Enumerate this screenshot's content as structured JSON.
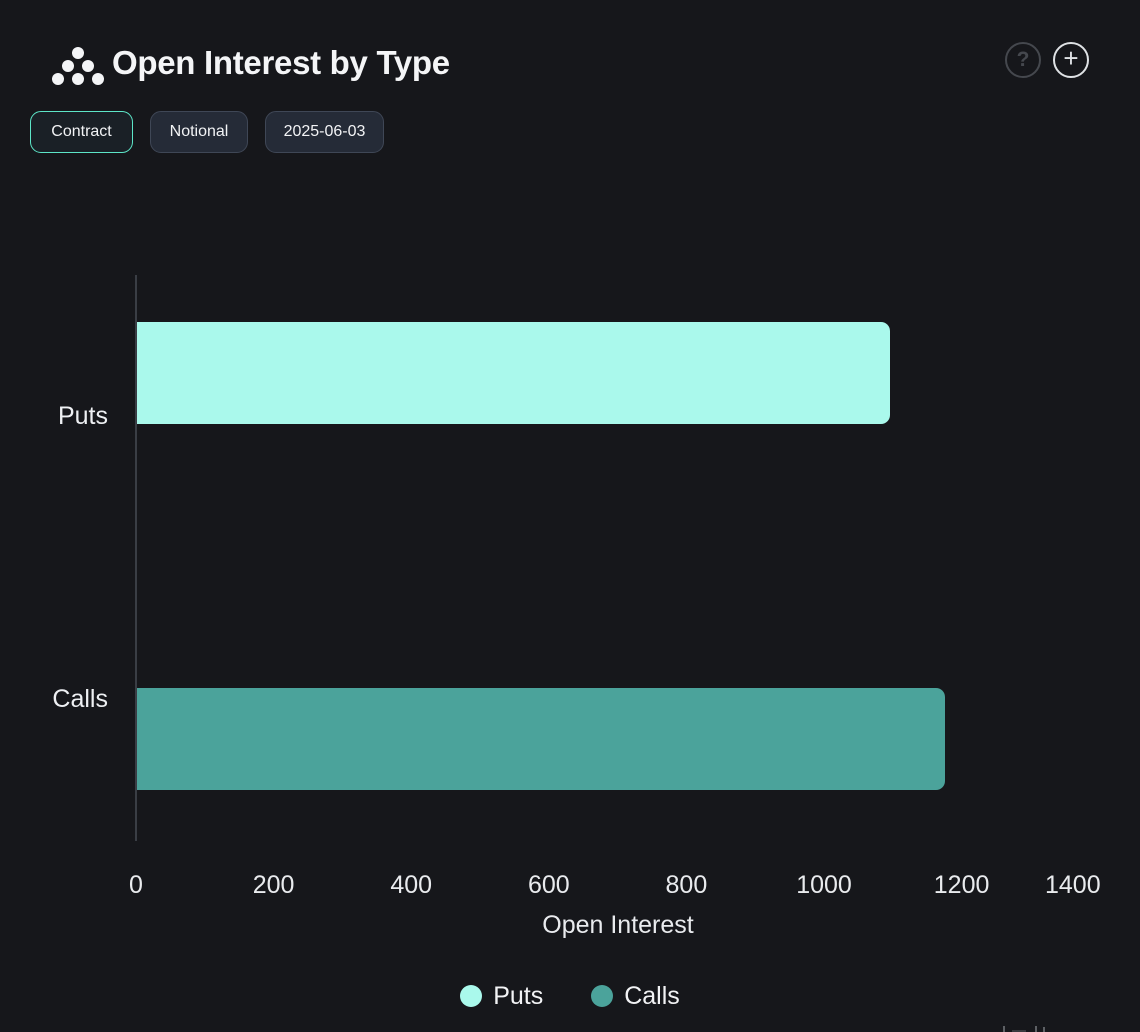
{
  "header": {
    "title": "Open Interest by Type",
    "help_glyph": "?",
    "add_glyph": "+"
  },
  "toolbar": {
    "buttons": [
      {
        "label": "Contract",
        "active": true
      },
      {
        "label": "Notional",
        "active": false
      },
      {
        "label": "2025-06-03",
        "active": false
      }
    ]
  },
  "colors": {
    "background": "#16171b",
    "puts": "#aaf9ec",
    "calls": "#4ba39b",
    "active_button_border": "#5de6c8",
    "axis_line": "#3a3e45"
  },
  "chart_data": {
    "type": "bar",
    "orientation": "horizontal",
    "categories": [
      "Puts",
      "Calls"
    ],
    "values": [
      1094,
      1174
    ],
    "colors": [
      "#aaf9ec",
      "#4ba39b"
    ],
    "title": "Open Interest by Type",
    "xlabel": "Open Interest",
    "ylabel": "",
    "xlim": [
      0,
      1400
    ],
    "xticks": [
      0,
      200,
      400,
      600,
      800,
      1000,
      1200,
      1400
    ],
    "grid": false,
    "legend_position": "bottom",
    "legend": [
      {
        "label": "Puts",
        "color": "#aaf9ec"
      },
      {
        "label": "Calls",
        "color": "#4ba39b"
      }
    ]
  }
}
